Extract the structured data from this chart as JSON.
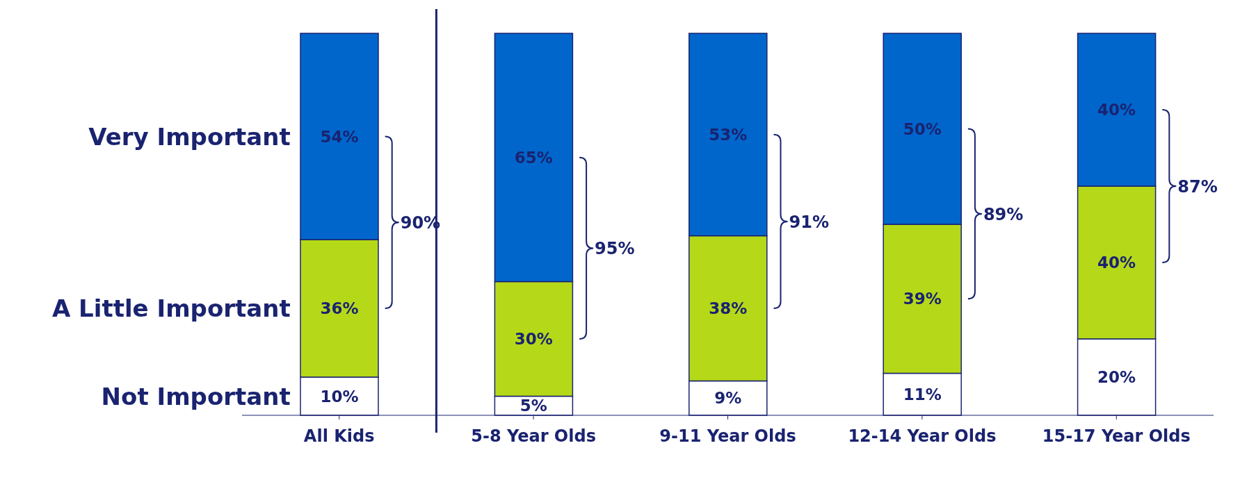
{
  "chart_data": {
    "type": "bar",
    "stacked": true,
    "legend": false,
    "categories": [
      "All Kids",
      "5-8 Year Olds",
      "9-11 Year Olds",
      "12-14 Year Olds",
      "15-17 Year Olds"
    ],
    "series": [
      {
        "name": "Not Important",
        "color": "#ffffff",
        "values": [
          10,
          5,
          9,
          11,
          20
        ],
        "value_labels": [
          "10%",
          "5%",
          "9%",
          "11%",
          "20%"
        ]
      },
      {
        "name": "A Little Important",
        "color": "#b5d918",
        "values": [
          36,
          30,
          38,
          39,
          40
        ],
        "value_labels": [
          "36%",
          "30%",
          "38%",
          "39%",
          "40%"
        ]
      },
      {
        "name": "Very Important",
        "color": "#0066cc",
        "values": [
          54,
          65,
          53,
          50,
          40
        ],
        "value_labels": [
          "54%",
          "65%",
          "53%",
          "50%",
          "40%"
        ]
      }
    ],
    "annotations": [
      "90%",
      "95%",
      "91%",
      "89%",
      "87%"
    ]
  }
}
